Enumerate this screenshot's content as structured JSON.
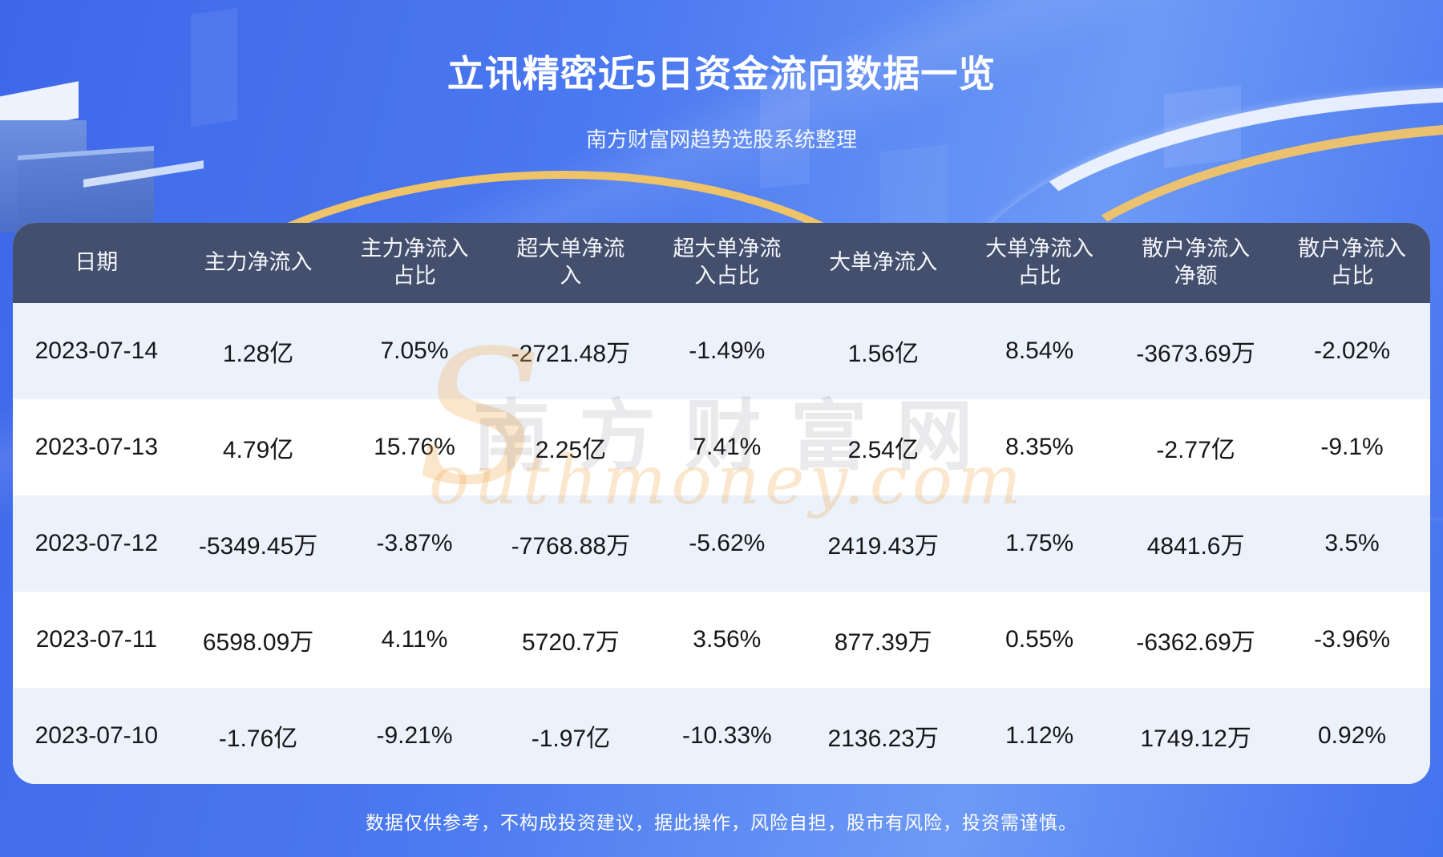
{
  "header": {
    "title": "立讯精密近5日资金流向数据一览",
    "subtitle": "南方财富网趋势选股系统整理"
  },
  "table": {
    "headers": [
      "日期",
      "主力净流入",
      "主力净流入占比",
      "超大单净流入",
      "超大单净流入占比",
      "大单净流入",
      "大单净流入占比",
      "散户净流入净额",
      "散户净流入占比"
    ],
    "rows": [
      [
        "2023-07-14",
        "1.28亿",
        "7.05%",
        "-2721.48万",
        "-1.49%",
        "1.56亿",
        "8.54%",
        "-3673.69万",
        "-2.02%"
      ],
      [
        "2023-07-13",
        "4.79亿",
        "15.76%",
        "2.25亿",
        "7.41%",
        "2.54亿",
        "8.35%",
        "-2.77亿",
        "-9.1%"
      ],
      [
        "2023-07-12",
        "-5349.45万",
        "-3.87%",
        "-7768.88万",
        "-5.62%",
        "2419.43万",
        "1.75%",
        "4841.6万",
        "3.5%"
      ],
      [
        "2023-07-11",
        "6598.09万",
        "4.11%",
        "5720.7万",
        "3.56%",
        "877.39万",
        "0.55%",
        "-6362.69万",
        "-3.96%"
      ],
      [
        "2023-07-10",
        "-1.76亿",
        "-9.21%",
        "-1.97亿",
        "-10.33%",
        "2136.23万",
        "1.12%",
        "1749.12万",
        "0.92%"
      ]
    ]
  },
  "watermark": {
    "initial": "S",
    "cn": "南方财富网",
    "en": "outhmoney.com"
  },
  "footer": {
    "disclaimer": "数据仅供参考，不构成投资建议，据此操作，风险自担，股市有风险，投资需谨慎。"
  },
  "colors": {
    "table_header_bg": "#434f6d",
    "row_alt_bg": "#ebf2fc",
    "page_blue": "#4273ef",
    "accent_gold": "#efc368"
  },
  "chart_data": {
    "type": "table",
    "title": "立讯精密近5日资金流向数据一览",
    "columns": [
      "日期",
      "主力净流入",
      "主力净流入占比",
      "超大单净流入",
      "超大单净流入占比",
      "大单净流入",
      "大单净流入占比",
      "散户净流入净额",
      "散户净流入占比"
    ],
    "rows": [
      [
        "2023-07-14",
        "1.28亿",
        "7.05%",
        "-2721.48万",
        "-1.49%",
        "1.56亿",
        "8.54%",
        "-3673.69万",
        "-2.02%"
      ],
      [
        "2023-07-13",
        "4.79亿",
        "15.76%",
        "2.25亿",
        "7.41%",
        "2.54亿",
        "8.35%",
        "-2.77亿",
        "-9.1%"
      ],
      [
        "2023-07-12",
        "-5349.45万",
        "-3.87%",
        "-7768.88万",
        "-5.62%",
        "2419.43万",
        "1.75%",
        "4841.6万",
        "3.5%"
      ],
      [
        "2023-07-11",
        "6598.09万",
        "4.11%",
        "5720.7万",
        "3.56%",
        "877.39万",
        "0.55%",
        "-6362.69万",
        "-3.96%"
      ],
      [
        "2023-07-10",
        "-1.76亿",
        "-9.21%",
        "-1.97亿",
        "-10.33%",
        "2136.23万",
        "1.12%",
        "1749.12万",
        "0.92%"
      ]
    ]
  }
}
